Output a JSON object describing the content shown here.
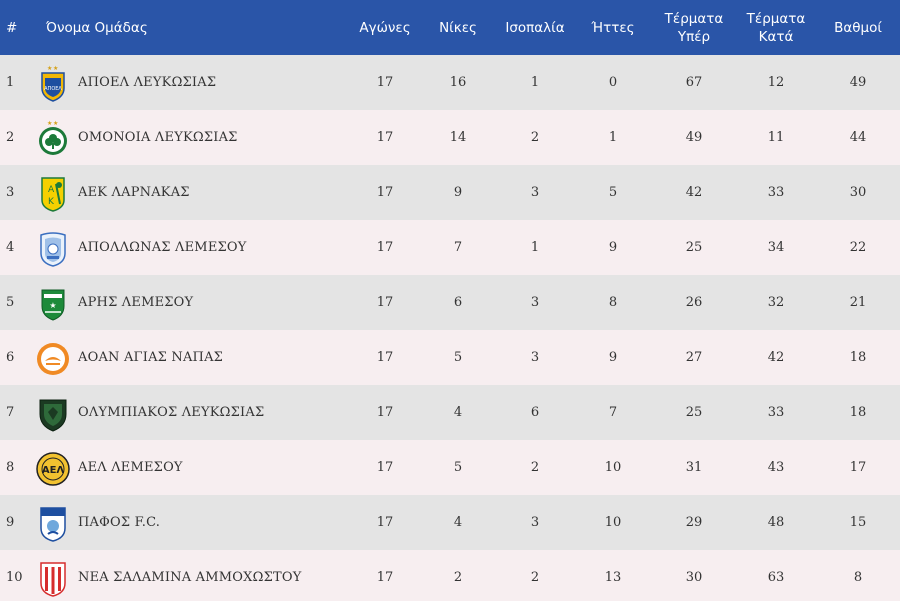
{
  "headers": {
    "rank": "#",
    "team": "Όνομα Ομάδας",
    "played": "Αγώνες",
    "wins": "Νίκες",
    "draws": "Ισοπαλία",
    "losses": "Ήττες",
    "goals_for_1": "Τέρματα",
    "goals_for_2": "Υπέρ",
    "goals_against_1": "Τέρματα",
    "goals_against_2": "Κατά",
    "points": "Βαθμοί"
  },
  "rows": [
    {
      "rank": "1",
      "team": "ΑΠΟΕΛ ΛΕΥΚΩΣΙΑΣ",
      "played": "17",
      "wins": "16",
      "draws": "1",
      "losses": "0",
      "gf": "67",
      "ga": "12",
      "pts": "49",
      "logo": "apoel-crest-icon"
    },
    {
      "rank": "2",
      "team": "ΟΜΟΝΟΙΑ ΛΕΥΚΩΣΙΑΣ",
      "played": "17",
      "wins": "14",
      "draws": "2",
      "losses": "1",
      "gf": "49",
      "ga": "11",
      "pts": "44",
      "logo": "omonoia-crest-icon"
    },
    {
      "rank": "3",
      "team": "ΑΕΚ ΛΑΡΝΑΚΑΣ",
      "played": "17",
      "wins": "9",
      "draws": "3",
      "losses": "5",
      "gf": "42",
      "ga": "33",
      "pts": "30",
      "logo": "aek-crest-icon"
    },
    {
      "rank": "4",
      "team": "ΑΠΟΛΛΩΝΑΣ ΛΕΜΕΣΟΥ",
      "played": "17",
      "wins": "7",
      "draws": "1",
      "losses": "9",
      "gf": "25",
      "ga": "34",
      "pts": "22",
      "logo": "apollon-crest-icon"
    },
    {
      "rank": "5",
      "team": "ΑΡΗΣ ΛΕΜΕΣΟΥ",
      "played": "17",
      "wins": "6",
      "draws": "3",
      "losses": "8",
      "gf": "26",
      "ga": "32",
      "pts": "21",
      "logo": "aris-crest-icon"
    },
    {
      "rank": "6",
      "team": "ΑΟΑΝ ΑΓΙΑΣ ΝΑΠΑΣ",
      "played": "17",
      "wins": "5",
      "draws": "3",
      "losses": "9",
      "gf": "27",
      "ga": "42",
      "pts": "18",
      "logo": "aoan-crest-icon"
    },
    {
      "rank": "7",
      "team": "ΟΛΥΜΠΙΑΚΟΣ ΛΕΥΚΩΣΙΑΣ",
      "played": "17",
      "wins": "4",
      "draws": "6",
      "losses": "7",
      "gf": "25",
      "ga": "33",
      "pts": "18",
      "logo": "olympiakos-crest-icon"
    },
    {
      "rank": "8",
      "team": "ΑΕΛ ΛΕΜΕΣΟΥ",
      "played": "17",
      "wins": "5",
      "draws": "2",
      "losses": "10",
      "gf": "31",
      "ga": "43",
      "pts": "17",
      "logo": "ael-crest-icon"
    },
    {
      "rank": "9",
      "team": "ΠΑΦΟΣ F.C.",
      "played": "17",
      "wins": "4",
      "draws": "3",
      "losses": "10",
      "gf": "29",
      "ga": "48",
      "pts": "15",
      "logo": "pafos-crest-icon"
    },
    {
      "rank": "10",
      "team": "ΝΕΑ ΣΑΛΑΜΙΝΑ ΑΜΜΟΧΩΣΤΟΥ",
      "played": "17",
      "wins": "2",
      "draws": "2",
      "losses": "13",
      "gf": "30",
      "ga": "63",
      "pts": "8",
      "logo": "nea-salamina-crest-icon"
    }
  ],
  "colors": {
    "header_bg": "#2a55a8",
    "row_odd": "#e4e4e4",
    "row_even": "#f7eef0"
  }
}
